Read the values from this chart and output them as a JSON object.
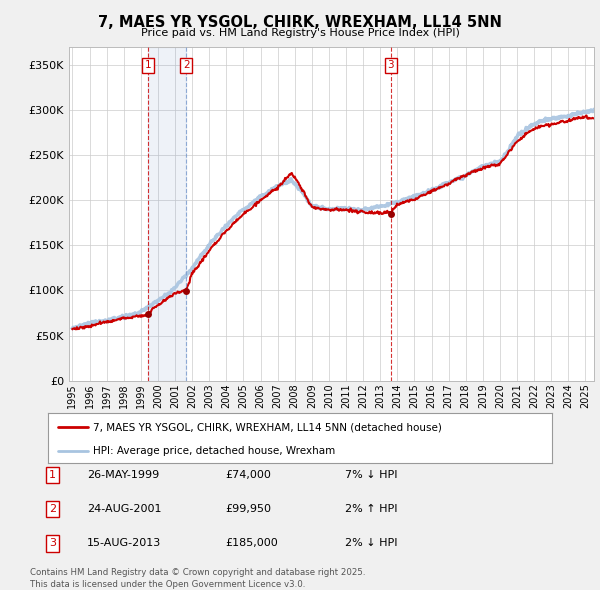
{
  "title": "7, MAES YR YSGOL, CHIRK, WREXHAM, LL14 5NN",
  "subtitle": "Price paid vs. HM Land Registry's House Price Index (HPI)",
  "xlim": [
    1994.8,
    2025.5
  ],
  "ylim": [
    0,
    370000
  ],
  "yticks": [
    0,
    50000,
    100000,
    150000,
    200000,
    250000,
    300000,
    350000
  ],
  "ytick_labels": [
    "£0",
    "£50K",
    "£100K",
    "£150K",
    "£200K",
    "£250K",
    "£300K",
    "£350K"
  ],
  "bg_color": "#f0f0f0",
  "plot_bg_color": "#ffffff",
  "grid_color": "#cccccc",
  "hpi_color": "#a8c4e0",
  "price_color": "#cc0000",
  "marker_color": "#990000",
  "sales": [
    {
      "date": 1999.4,
      "price": 74000,
      "label": "1",
      "pct": "7%",
      "dir": "↓",
      "datestr": "26-MAY-1999",
      "pricestr": "£74,000",
      "vline_color": "#cc0000",
      "vline_style": "--"
    },
    {
      "date": 2001.65,
      "price": 99950,
      "label": "2",
      "pct": "2%",
      "dir": "↑",
      "datestr": "24-AUG-2001",
      "pricestr": "£99,950",
      "vline_color": "#7799cc",
      "vline_style": "--"
    },
    {
      "date": 2013.62,
      "price": 185000,
      "label": "3",
      "pct": "2%",
      "dir": "↓",
      "datestr": "15-AUG-2013",
      "pricestr": "£185,000",
      "vline_color": "#cc0000",
      "vline_style": "--"
    }
  ],
  "shade_between": [
    0,
    1
  ],
  "legend_house_label": "7, MAES YR YSGOL, CHIRK, WREXHAM, LL14 5NN (detached house)",
  "legend_hpi_label": "HPI: Average price, detached house, Wrexham",
  "footer": "Contains HM Land Registry data © Crown copyright and database right 2025.\nThis data is licensed under the Open Government Licence v3.0.",
  "xtick_years": [
    1995,
    1996,
    1997,
    1998,
    1999,
    2000,
    2001,
    2002,
    2003,
    2004,
    2005,
    2006,
    2007,
    2008,
    2009,
    2010,
    2011,
    2012,
    2013,
    2014,
    2015,
    2016,
    2017,
    2018,
    2019,
    2020,
    2021,
    2022,
    2023,
    2024,
    2025
  ]
}
